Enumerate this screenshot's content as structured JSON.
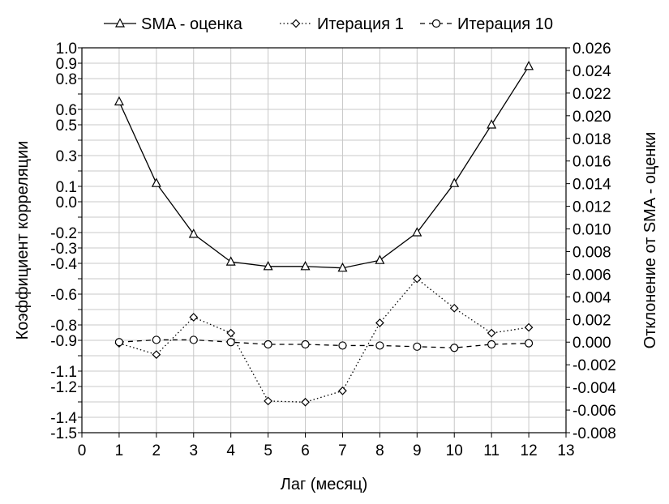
{
  "chart_data": {
    "type": "line",
    "xlabel": "Лаг (месяц)",
    "ylabel": "Коэффициент корреляции",
    "y2label": "Отклонение от SMA - оценки",
    "xlim": [
      0,
      13
    ],
    "ylim": [
      -1.5,
      1.0
    ],
    "y2lim": [
      -0.008,
      0.026
    ],
    "grid": true,
    "legend_position": "top",
    "x_ticks": [
      "0",
      "1",
      "2",
      "3",
      "4",
      "5",
      "6",
      "7",
      "8",
      "9",
      "10",
      "11",
      "12",
      "13"
    ],
    "y_ticks": [
      "1.0",
      "0.9",
      "0.8",
      "0.7",
      "0.6",
      "0.5",
      "0.4",
      "0.3",
      "0.2",
      "0.1",
      "0.0",
      "-0.1",
      "-0.2",
      "-0.3",
      "-0.4",
      "-0.5",
      "-0.6",
      "-0.7",
      "-0.8",
      "-0.9",
      "-1.0",
      "-1.1",
      "-1.2",
      "-1.3",
      "-1.4",
      "-1.5"
    ],
    "y_tick_labels": [
      "1.0",
      "0.9",
      "0.8",
      "0.6",
      "0.5",
      "0.3",
      "0.1",
      "0.0",
      "-0.2",
      "-0.3",
      "-0.4",
      "-0.6",
      "-0.8",
      "-0.9",
      "-1.1",
      "-1.2",
      "-1.4",
      "-1.5"
    ],
    "y2_tick_labels": [
      "0.026",
      "0.024",
      "0.022",
      "0.020",
      "0.018",
      "0.016",
      "0.014",
      "0.012",
      "0.010",
      "0.008",
      "0.006",
      "0.004",
      "0.002",
      "0.000",
      "-0.002",
      "-0.004",
      "-0.006",
      "-0.008"
    ],
    "x": [
      1,
      2,
      3,
      4,
      5,
      6,
      7,
      8,
      9,
      10,
      11,
      12
    ],
    "series": [
      {
        "name": "SMA - оценка",
        "axis": "left",
        "marker": "triangle",
        "line_style": "solid",
        "values": [
          0.65,
          0.12,
          -0.21,
          -0.39,
          -0.42,
          -0.42,
          -0.43,
          -0.38,
          -0.2,
          0.12,
          0.5,
          0.88
        ]
      },
      {
        "name": "Итерация 1",
        "axis": "right",
        "marker": "diamond",
        "line_style": "dotted",
        "values": [
          -0.0001,
          -0.0011,
          0.0022,
          0.0008,
          -0.0052,
          -0.0053,
          -0.0043,
          0.0017,
          0.0056,
          0.003,
          0.0008,
          0.0013
        ]
      },
      {
        "name": "Итерация 10",
        "axis": "right",
        "marker": "circle",
        "line_style": "dashed",
        "values": [
          0.0,
          0.0002,
          0.0002,
          0.0,
          -0.0002,
          -0.0002,
          -0.0003,
          -0.0003,
          -0.0004,
          -0.0005,
          -0.0002,
          -0.0001
        ]
      }
    ]
  }
}
